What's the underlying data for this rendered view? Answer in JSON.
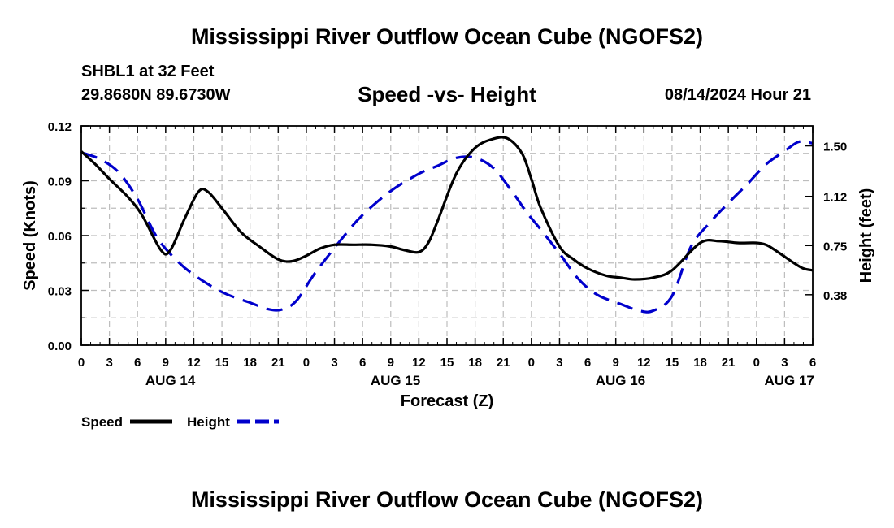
{
  "header": {
    "title": "Mississippi River Outflow Ocean Cube (NGOFS2)",
    "station": "SHBL1 at 32 Feet",
    "coords": "29.8680N  89.6730W",
    "subtitle": "Speed -vs- Height",
    "datetime": "08/14/2024 Hour 21"
  },
  "footer": {
    "title": "Mississippi River Outflow Ocean Cube (NGOFS2)"
  },
  "chart_data": {
    "type": "line",
    "title": "Speed -vs- Height",
    "xlabel": "Forecast (Z)",
    "ylabel": "Speed (Knots)",
    "y2label": "Height (feet)",
    "xlim": [
      0,
      78
    ],
    "ylim": [
      0,
      0.12
    ],
    "y2lim": [
      0,
      1.65
    ],
    "x_ticks": [
      0,
      3,
      6,
      9,
      12,
      15,
      18,
      21,
      24,
      27,
      30,
      33,
      36,
      39,
      42,
      45,
      48,
      51,
      54,
      57,
      60,
      63,
      66,
      69,
      72,
      75,
      78
    ],
    "x_tick_labels": [
      "0",
      "3",
      "6",
      "9",
      "12",
      "15",
      "18",
      "21",
      "0",
      "3",
      "6",
      "9",
      "12",
      "15",
      "18",
      "21",
      "0",
      "3",
      "6",
      "9",
      "12",
      "15",
      "18",
      "21",
      "0",
      "3",
      "6"
    ],
    "day_labels": [
      {
        "x": 9.5,
        "label": "AUG 14"
      },
      {
        "x": 33.5,
        "label": "AUG 15"
      },
      {
        "x": 57.5,
        "label": "AUG 16"
      },
      {
        "x": 75.5,
        "label": "AUG 17"
      }
    ],
    "y_ticks": [
      0,
      0.03,
      0.06,
      0.09,
      0.12
    ],
    "y_tick_labels": [
      "0.00",
      "0.03",
      "0.06",
      "0.09",
      "0.12"
    ],
    "y2_ticks": [
      0.38,
      0.75,
      1.12,
      1.5
    ],
    "y2_tick_labels": [
      "0.38",
      "0.75",
      "1.12",
      "1.50"
    ],
    "grid": true,
    "legend": [
      "Speed",
      "Height"
    ],
    "series": [
      {
        "name": "Speed",
        "axis": "left",
        "color": "#000000",
        "style": "solid",
        "x": [
          0,
          1.5,
          3,
          5,
          6.5,
          8.5,
          9.5,
          11,
          12.5,
          13.5,
          15,
          17,
          19,
          21,
          22.5,
          24,
          25.5,
          27,
          29,
          31,
          33,
          34.5,
          36,
          37,
          38,
          40,
          42,
          44,
          45.5,
          47,
          48,
          49,
          51,
          52.5,
          54,
          56,
          57.5,
          59,
          61,
          63,
          66,
          68,
          70,
          72,
          73,
          74,
          76,
          77,
          78
        ],
        "values": [
          0.106,
          0.099,
          0.091,
          0.081,
          0.071,
          0.052,
          0.052,
          0.069,
          0.084,
          0.084,
          0.075,
          0.062,
          0.054,
          0.047,
          0.046,
          0.049,
          0.053,
          0.055,
          0.055,
          0.055,
          0.054,
          0.052,
          0.051,
          0.056,
          0.068,
          0.094,
          0.108,
          0.113,
          0.113,
          0.105,
          0.091,
          0.075,
          0.054,
          0.047,
          0.042,
          0.038,
          0.037,
          0.036,
          0.037,
          0.041,
          0.056,
          0.057,
          0.056,
          0.056,
          0.055,
          0.052,
          0.045,
          0.042,
          0.041
        ]
      },
      {
        "name": "Height",
        "axis": "right",
        "color": "#0000cc",
        "style": "dashed",
        "x": [
          0,
          2,
          4,
          6,
          8,
          10,
          12,
          15,
          18,
          20,
          21.5,
          23,
          25,
          28,
          30,
          33,
          36,
          38,
          40,
          42,
          44,
          46,
          47.5,
          49,
          51,
          53,
          55,
          57.5,
          59.5,
          61,
          63,
          65,
          67,
          69,
          71,
          73,
          75,
          76.5,
          78
        ],
        "values": [
          1.45,
          1.4,
          1.3,
          1.1,
          0.82,
          0.65,
          0.53,
          0.4,
          0.32,
          0.27,
          0.27,
          0.34,
          0.55,
          0.82,
          0.98,
          1.16,
          1.29,
          1.35,
          1.41,
          1.41,
          1.33,
          1.15,
          1.0,
          0.87,
          0.69,
          0.5,
          0.38,
          0.31,
          0.26,
          0.26,
          0.37,
          0.74,
          0.92,
          1.07,
          1.21,
          1.36,
          1.46,
          1.53,
          1.52
        ]
      }
    ]
  }
}
